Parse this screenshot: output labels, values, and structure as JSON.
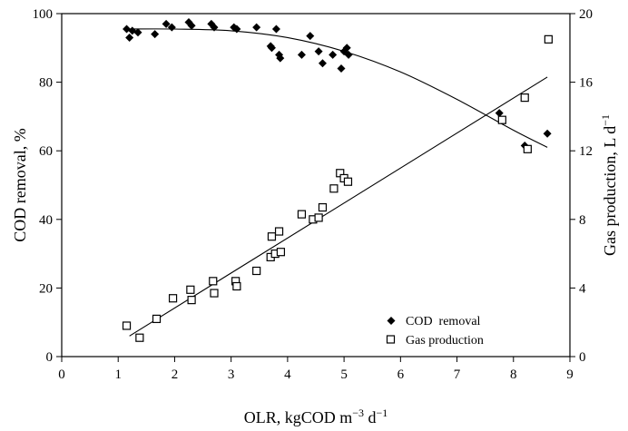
{
  "chart_data": {
    "type": "scatter",
    "x_axis": {
      "label_main": "OLR, kgCOD m",
      "label_sup1": "−3",
      "label_mid": " d",
      "label_sup2": "−1",
      "range": [
        0,
        9
      ],
      "ticks": [
        "0",
        "1",
        "2",
        "3",
        "4",
        "5",
        "6",
        "7",
        "8",
        "9"
      ]
    },
    "y_axis_left": {
      "label": "COD removal, %",
      "range": [
        0,
        100
      ],
      "ticks": [
        "0",
        "20",
        "40",
        "60",
        "80",
        "100"
      ]
    },
    "y_axis_right": {
      "label_main": "Gas production, L d",
      "label_sup": "−1",
      "range": [
        0,
        20
      ],
      "ticks": [
        "0",
        "4",
        "8",
        "12",
        "16",
        "20"
      ]
    },
    "grid": false,
    "legend_position": "lower-right",
    "series": [
      {
        "name": "COD  removal",
        "axis": "left",
        "marker": "filled-diamond",
        "color": "#000000",
        "points": [
          [
            1.15,
            95.5
          ],
          [
            1.2,
            93
          ],
          [
            1.25,
            95
          ],
          [
            1.35,
            94.5
          ],
          [
            1.65,
            94
          ],
          [
            1.85,
            97
          ],
          [
            1.95,
            96
          ],
          [
            2.25,
            97.5
          ],
          [
            2.3,
            96.5
          ],
          [
            2.65,
            97
          ],
          [
            2.7,
            96
          ],
          [
            3.05,
            96
          ],
          [
            3.1,
            95.5
          ],
          [
            3.45,
            96
          ],
          [
            3.7,
            90.5
          ],
          [
            3.72,
            90
          ],
          [
            3.8,
            95.5
          ],
          [
            3.85,
            88
          ],
          [
            3.87,
            87
          ],
          [
            4.25,
            88
          ],
          [
            4.4,
            93.5
          ],
          [
            4.55,
            89
          ],
          [
            4.62,
            85.5
          ],
          [
            4.8,
            88
          ],
          [
            4.95,
            84
          ],
          [
            5.0,
            89
          ],
          [
            5.05,
            90
          ],
          [
            5.08,
            88
          ],
          [
            7.75,
            71
          ],
          [
            8.2,
            61.5
          ],
          [
            8.6,
            65
          ]
        ]
      },
      {
        "name": "Gas production",
        "axis": "right",
        "marker": "open-square",
        "color": "#000000",
        "points": [
          [
            1.15,
            1.8
          ],
          [
            1.38,
            1.1
          ],
          [
            1.68,
            2.2
          ],
          [
            1.97,
            3.4
          ],
          [
            2.28,
            3.9
          ],
          [
            2.3,
            3.3
          ],
          [
            2.68,
            4.4
          ],
          [
            2.7,
            3.7
          ],
          [
            3.08,
            4.4
          ],
          [
            3.1,
            4.1
          ],
          [
            3.45,
            5.0
          ],
          [
            3.7,
            5.8
          ],
          [
            3.72,
            7.0
          ],
          [
            3.78,
            6.0
          ],
          [
            3.85,
            7.3
          ],
          [
            3.88,
            6.1
          ],
          [
            4.25,
            8.3
          ],
          [
            4.45,
            8.0
          ],
          [
            4.55,
            8.1
          ],
          [
            4.62,
            8.7
          ],
          [
            4.82,
            9.8
          ],
          [
            4.93,
            10.7
          ],
          [
            5.0,
            10.4
          ],
          [
            5.07,
            10.2
          ],
          [
            7.8,
            13.8
          ],
          [
            8.2,
            15.1
          ],
          [
            8.25,
            12.1
          ],
          [
            8.62,
            18.5
          ]
        ]
      }
    ],
    "fits": [
      {
        "series": "COD  removal",
        "axis": "left",
        "type": "quadratic",
        "x_range": [
          1.15,
          8.6
        ],
        "points": [
          [
            1.15,
            95.5
          ],
          [
            2.0,
            95.5
          ],
          [
            3.0,
            95.0
          ],
          [
            4.0,
            93.0
          ],
          [
            5.0,
            89.0
          ],
          [
            6.0,
            83.0
          ],
          [
            7.0,
            75.0
          ],
          [
            8.0,
            66.0
          ],
          [
            8.6,
            61.0
          ]
        ]
      },
      {
        "series": "Gas production",
        "axis": "right",
        "type": "linear",
        "x_range": [
          1.2,
          8.6
        ],
        "points": [
          [
            1.2,
            1.2
          ],
          [
            8.6,
            16.3
          ]
        ]
      }
    ]
  }
}
